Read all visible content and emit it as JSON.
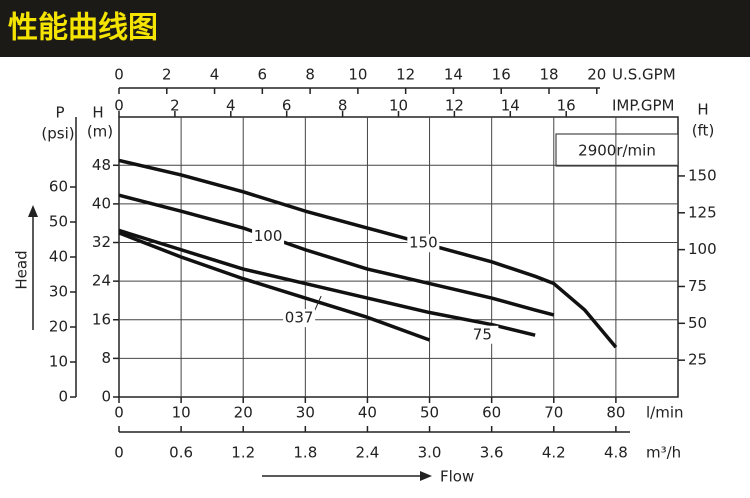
{
  "header": {
    "title": "性能曲线图"
  },
  "chart_data": {
    "type": "line",
    "speed_label": "2900r/min",
    "x_label": "Flow",
    "y_label": "Head",
    "x": [
      0,
      10,
      20,
      30,
      40,
      50,
      60,
      67,
      70,
      75,
      80
    ],
    "xlim": [
      0,
      90
    ],
    "xticks": [
      0,
      10,
      20,
      30,
      40,
      50,
      60,
      70,
      80
    ],
    "x_unit": "l/min",
    "x2lim": [
      0,
      5.4
    ],
    "x2ticks": [
      0,
      0.6,
      1.2,
      1.8,
      2.4,
      {
        "value": 3,
        "label": "3.0"
      },
      3.6,
      4.2,
      4.8
    ],
    "x2_unit": "m³/h",
    "x3lim": [
      0,
      23.4
    ],
    "x3ticks": [
      0,
      2,
      4,
      6,
      8,
      10,
      12,
      14,
      16,
      18,
      20
    ],
    "x3_unit": "U.S.GPM",
    "x4lim": [
      0,
      20
    ],
    "x4ticks": [
      0,
      2,
      4,
      6,
      8,
      10,
      12,
      14,
      16
    ],
    "x4_unit": "IMP.GPM",
    "ylim": [
      0,
      58
    ],
    "yticks": [
      0,
      8,
      16,
      24,
      32,
      40,
      48
    ],
    "y_symbol": "H",
    "y_unit": "(m)",
    "y2lim": [
      0,
      190
    ],
    "y2ticks": [
      25,
      50,
      75,
      100,
      125,
      150
    ],
    "y2_symbol": "H",
    "y2_unit": "(ft)",
    "y3lim": [
      0,
      80
    ],
    "y3ticks": [
      0,
      10,
      20,
      30,
      40,
      50,
      60
    ],
    "y3_symbol": "P",
    "y3_unit": "(psi)",
    "grid": true,
    "series": [
      {
        "name": "150",
        "color": "#111111",
        "values": [
          49,
          46,
          42.5,
          38.5,
          35,
          31.5,
          28,
          25,
          23.5,
          18,
          10.3
        ]
      },
      {
        "name": "100",
        "color": "#111111",
        "values": [
          41.8,
          38.5,
          35,
          30.5,
          26.5,
          23.5,
          20.5,
          18,
          17,
          null,
          null
        ]
      },
      {
        "name": "75",
        "color": "#111111",
        "values": [
          34.5,
          30.5,
          26.5,
          23.5,
          20.5,
          17.5,
          15,
          12.8,
          null,
          null,
          null
        ]
      },
      {
        "name": "037",
        "color": "#111111",
        "values": [
          34,
          29,
          24.5,
          20.5,
          16.5,
          11.8,
          null,
          null,
          null,
          null,
          null
        ]
      }
    ]
  }
}
